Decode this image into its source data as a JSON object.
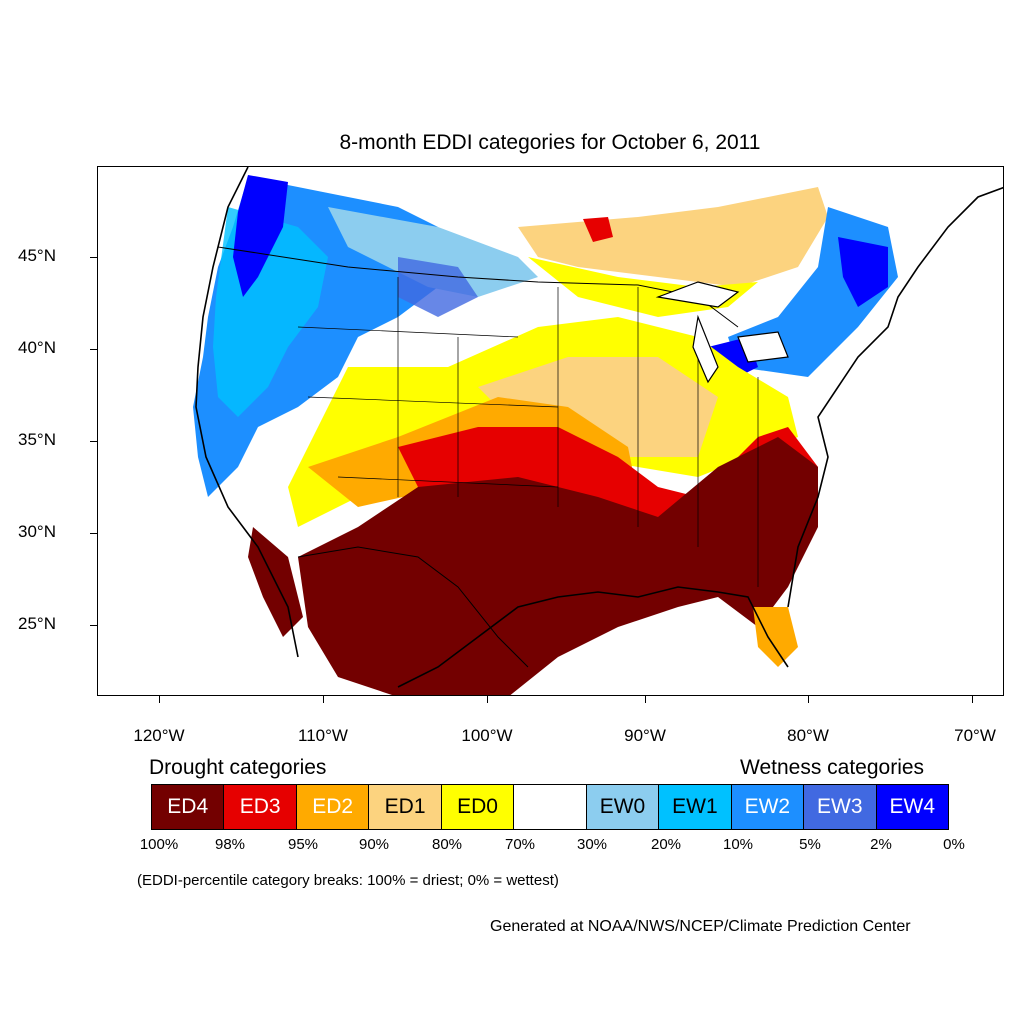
{
  "title": "8-month EDDI categories for October 6, 2011",
  "axes": {
    "lat_labels": [
      "45°N",
      "40°N",
      "35°N",
      "30°N",
      "25°N"
    ],
    "lon_labels": [
      "120°W",
      "110°W",
      "100°W",
      "90°W",
      "80°W",
      "70°W"
    ]
  },
  "legend": {
    "drought_heading": "Drought categories",
    "wetness_heading": "Wetness categories",
    "categories": [
      {
        "label": "ED4",
        "color": "#730000",
        "text_color": "#ffffff"
      },
      {
        "label": "ED3",
        "color": "#e60000",
        "text_color": "#ffffff"
      },
      {
        "label": "ED2",
        "color": "#ffaa00",
        "text_color": "#ffffff"
      },
      {
        "label": "ED1",
        "color": "#fcd37f",
        "text_color": "#000000"
      },
      {
        "label": "ED0",
        "color": "#ffff00",
        "text_color": "#000000"
      },
      {
        "label": "",
        "color": "#ffffff",
        "text_color": "#000000"
      },
      {
        "label": "EW0",
        "color": "#8ccdef",
        "text_color": "#000000"
      },
      {
        "label": "EW1",
        "color": "#00c1ff",
        "text_color": "#000000"
      },
      {
        "label": "EW2",
        "color": "#1d8fff",
        "text_color": "#ffffff"
      },
      {
        "label": "EW3",
        "color": "#4169e1",
        "text_color": "#ffffff"
      },
      {
        "label": "EW4",
        "color": "#0000ff",
        "text_color": "#ffffff"
      }
    ],
    "percent_breaks": [
      "100%",
      "98%",
      "95%",
      "90%",
      "80%",
      "70%",
      "30%",
      "20%",
      "10%",
      "5%",
      "2%",
      "0%"
    ]
  },
  "note": "(EDDI-percentile category breaks: 100% = driest; 0% = wettest)",
  "credit": "Generated at NOAA/NWS/NCEP/Climate Prediction Center"
}
